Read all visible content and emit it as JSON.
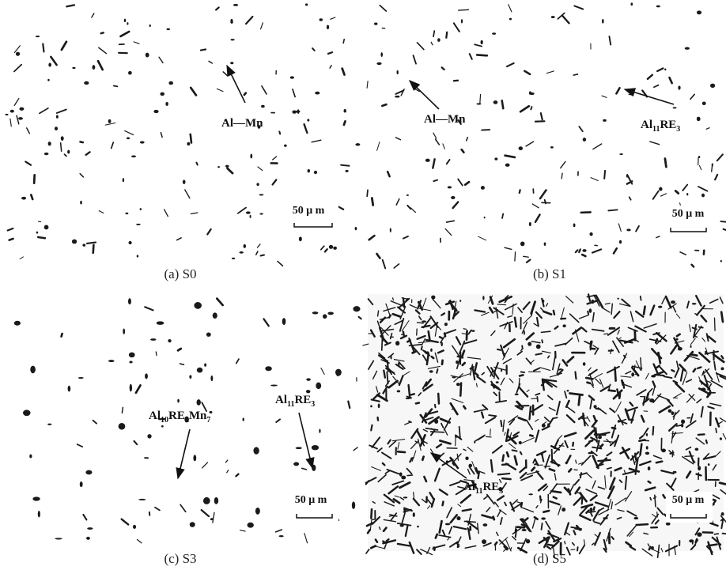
{
  "panels": [
    {
      "caption": "(a) S0",
      "scale": "50 μ m",
      "labels": [
        {
          "parts": [
            "Al—Mn"
          ]
        }
      ]
    },
    {
      "caption": "(b) S1",
      "scale": "50 μ m",
      "labels": [
        {
          "parts": [
            "Al—Mn"
          ]
        },
        {
          "parts": [
            "Al",
            "11",
            "RE",
            "3"
          ]
        }
      ]
    },
    {
      "caption": "(c) S3",
      "scale": "50 μ m",
      "labels": [
        {
          "parts": [
            "Al",
            "10",
            "RE",
            "2",
            "Mn",
            "7"
          ]
        },
        {
          "parts": [
            "Al",
            "11",
            "RE",
            "3"
          ]
        }
      ]
    },
    {
      "caption": "(d) S5",
      "scale": "50 μ m",
      "labels": [
        {
          "parts": [
            "Al",
            "11",
            "RE",
            "3"
          ]
        }
      ]
    }
  ]
}
